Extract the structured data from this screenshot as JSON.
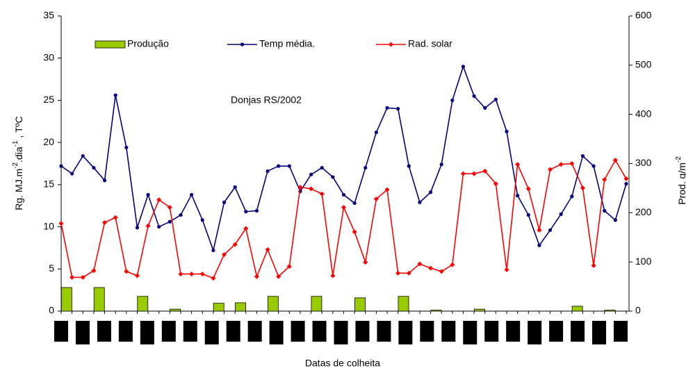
{
  "chart_data": {
    "type": "combo",
    "annotation": "Donjas RS/2002",
    "x_label": "Datas de colheita",
    "y_label": [
      "Rg. MJ.m",
      "-2",
      ".dia",
      "-1",
      " ,  TºC"
    ],
    "y2_label": [
      "Prod. g/m",
      "-2"
    ],
    "categories": [
      null,
      null,
      null,
      null,
      null,
      null,
      null,
      null,
      null,
      null,
      null,
      null,
      null,
      null,
      null,
      null,
      null,
      null,
      null,
      null,
      null,
      null,
      null,
      null,
      null,
      null,
      null,
      null,
      null,
      null,
      null,
      null,
      null,
      null,
      null,
      null,
      null,
      null,
      null,
      null,
      null,
      null,
      null,
      null,
      null,
      null,
      null,
      null,
      null,
      null,
      null,
      null,
      null
    ],
    "ylim": [
      0,
      35
    ],
    "yticks": [
      0,
      5,
      10,
      15,
      20,
      25,
      30,
      35
    ],
    "y2lim": [
      0,
      600
    ],
    "y2ticks": [
      0,
      100,
      200,
      300,
      400,
      500,
      600
    ],
    "legend": "top",
    "series": [
      {
        "name": "Produção",
        "type": "bar",
        "axis": "y2",
        "color": "#99cc00",
        "values": [
          48,
          null,
          null,
          48,
          null,
          null,
          null,
          30,
          null,
          null,
          4,
          null,
          null,
          null,
          16,
          null,
          17,
          null,
          null,
          30,
          null,
          null,
          null,
          30,
          null,
          null,
          null,
          27,
          null,
          null,
          null,
          30,
          null,
          null,
          2,
          null,
          null,
          null,
          4,
          null,
          null,
          null,
          null,
          null,
          null,
          null,
          null,
          10,
          null,
          null,
          2,
          null,
          null
        ]
      },
      {
        "name": "Temp média.",
        "type": "line",
        "color": "#000080",
        "values": [
          17.2,
          16.3,
          18.4,
          17.0,
          15.5,
          25.6,
          19.4,
          9.9,
          13.8,
          10.0,
          10.6,
          11.4,
          13.8,
          10.8,
          7.2,
          12.9,
          14.7,
          11.8,
          11.9,
          16.6,
          17.2,
          17.2,
          14.2,
          16.2,
          17.0,
          15.9,
          13.8,
          12.8,
          17.0,
          21.2,
          24.1,
          24.0,
          17.2,
          12.9,
          14.1,
          17.4,
          25.0,
          29.0,
          25.5,
          24.1,
          25.1,
          21.3,
          13.7,
          11.4,
          7.8,
          9.6,
          11.5,
          13.6,
          18.4,
          17.2,
          11.9,
          10.8,
          15.1
        ]
      },
      {
        "name": "Rad. solar",
        "type": "line",
        "color": "#ff0000",
        "values": [
          10.4,
          4.0,
          4.0,
          4.8,
          10.5,
          11.1,
          4.7,
          4.2,
          10.1,
          13.2,
          12.3,
          4.4,
          4.4,
          4.4,
          3.9,
          6.7,
          7.9,
          9.8,
          4.1,
          7.3,
          4.1,
          5.3,
          14.7,
          14.5,
          13.9,
          4.2,
          12.3,
          9.4,
          5.8,
          13.3,
          14.4,
          4.5,
          4.5,
          5.6,
          5.1,
          4.7,
          5.5,
          16.3,
          16.3,
          16.6,
          15.1,
          4.9,
          17.4,
          14.5,
          9.6,
          16.8,
          17.4,
          17.5,
          14.6,
          5.4,
          15.6,
          17.9,
          15.7
        ]
      }
    ]
  }
}
